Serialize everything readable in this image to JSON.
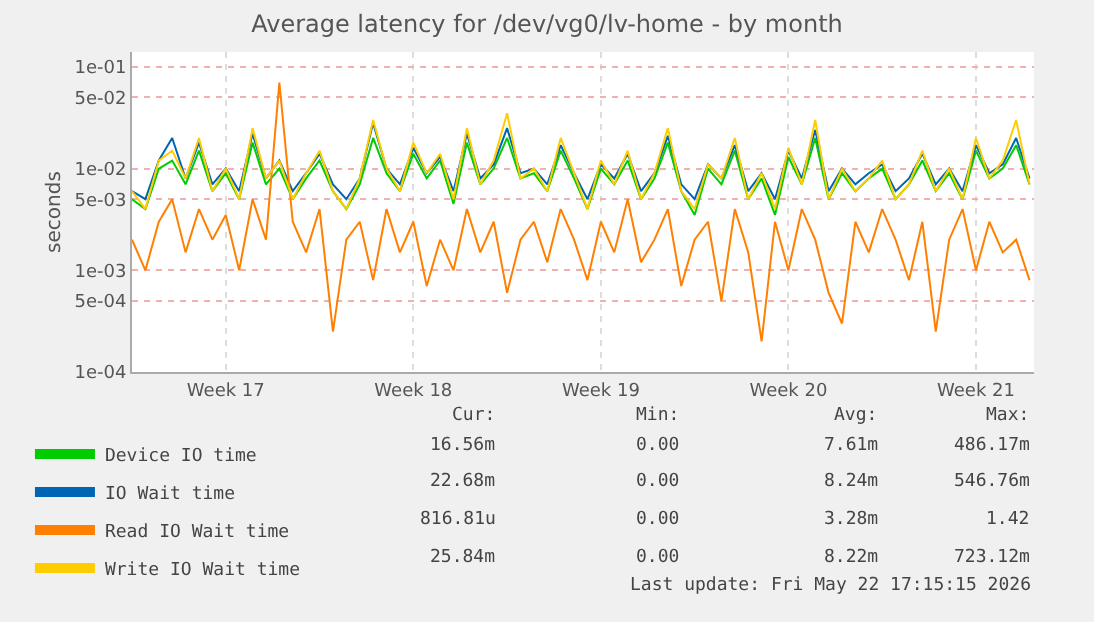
{
  "chart_data": {
    "type": "line",
    "title": "Average latency for /dev/vg0/lv-home - by month",
    "ylabel": "seconds",
    "x": [
      "2026-04-20T00:00",
      "2026-04-20T12:00",
      "2026-04-21T00:00",
      "2026-04-21T12:00",
      "2026-04-22T00:00",
      "2026-04-22T12:00",
      "2026-04-23T00:00",
      "2026-04-23T12:00",
      "2026-04-24T00:00",
      "2026-04-24T12:00",
      "2026-04-25T00:00",
      "2026-04-25T12:00",
      "2026-04-26T00:00",
      "2026-04-26T12:00",
      "2026-04-27T00:00",
      "2026-04-27T12:00",
      "2026-04-28T00:00",
      "2026-04-28T12:00",
      "2026-04-29T00:00",
      "2026-04-29T12:00",
      "2026-04-30T00:00",
      "2026-04-30T12:00",
      "2026-05-01T00:00",
      "2026-05-01T12:00",
      "2026-05-02T00:00",
      "2026-05-02T12:00",
      "2026-05-03T00:00",
      "2026-05-03T12:00",
      "2026-05-04T00:00",
      "2026-05-04T12:00",
      "2026-05-05T00:00",
      "2026-05-05T12:00",
      "2026-05-06T00:00",
      "2026-05-06T12:00",
      "2026-05-07T00:00",
      "2026-05-07T12:00",
      "2026-05-08T00:00",
      "2026-05-08T12:00",
      "2026-05-09T00:00",
      "2026-05-09T12:00",
      "2026-05-10T00:00",
      "2026-05-10T12:00",
      "2026-05-11T00:00",
      "2026-05-11T12:00",
      "2026-05-12T00:00",
      "2026-05-12T12:00",
      "2026-05-13T00:00",
      "2026-05-13T12:00",
      "2026-05-14T00:00",
      "2026-05-14T12:00",
      "2026-05-15T00:00",
      "2026-05-15T12:00",
      "2026-05-16T00:00",
      "2026-05-16T12:00",
      "2026-05-17T00:00",
      "2026-05-17T12:00",
      "2026-05-18T00:00",
      "2026-05-18T12:00",
      "2026-05-19T00:00",
      "2026-05-19T12:00",
      "2026-05-20T00:00",
      "2026-05-20T12:00",
      "2026-05-21T00:00",
      "2026-05-21T12:00",
      "2026-05-22T00:00",
      "2026-05-22T12:00",
      "2026-05-23T00:00",
      "2026-05-23T12:00"
    ],
    "series": [
      {
        "name": "Device IO time",
        "color": "#00cc00",
        "values": [
          0.005,
          0.004,
          0.01,
          0.012,
          0.007,
          0.015,
          0.006,
          0.009,
          0.005,
          0.018,
          0.007,
          0.01,
          0.005,
          0.008,
          0.012,
          0.006,
          0.004,
          0.007,
          0.02,
          0.009,
          0.006,
          0.014,
          0.008,
          0.012,
          0.0045,
          0.018,
          0.007,
          0.01,
          0.02,
          0.008,
          0.009,
          0.006,
          0.015,
          0.008,
          0.004,
          0.01,
          0.007,
          0.012,
          0.005,
          0.008,
          0.018,
          0.006,
          0.0035,
          0.01,
          0.007,
          0.015,
          0.005,
          0.008,
          0.0035,
          0.013,
          0.007,
          0.02,
          0.005,
          0.009,
          0.006,
          0.008,
          0.01,
          0.005,
          0.007,
          0.012,
          0.006,
          0.009,
          0.005,
          0.015,
          0.008,
          0.01,
          0.017,
          0.007
        ]
      },
      {
        "name": "IO Wait time",
        "color": "#0066b3",
        "values": [
          0.006,
          0.005,
          0.012,
          0.02,
          0.008,
          0.018,
          0.007,
          0.01,
          0.006,
          0.022,
          0.008,
          0.012,
          0.006,
          0.009,
          0.014,
          0.007,
          0.005,
          0.008,
          0.028,
          0.01,
          0.007,
          0.016,
          0.009,
          0.013,
          0.006,
          0.022,
          0.008,
          0.011,
          0.025,
          0.009,
          0.01,
          0.007,
          0.017,
          0.009,
          0.005,
          0.011,
          0.008,
          0.014,
          0.006,
          0.009,
          0.021,
          0.007,
          0.005,
          0.011,
          0.008,
          0.017,
          0.006,
          0.009,
          0.005,
          0.015,
          0.008,
          0.024,
          0.006,
          0.01,
          0.007,
          0.009,
          0.011,
          0.006,
          0.008,
          0.014,
          0.007,
          0.01,
          0.006,
          0.017,
          0.009,
          0.011,
          0.02,
          0.008
        ]
      },
      {
        "name": "Read IO Wait time",
        "color": "#ff8000",
        "values": [
          0.002,
          0.001,
          0.003,
          0.005,
          0.0015,
          0.004,
          0.002,
          0.0035,
          0.001,
          0.005,
          0.002,
          0.07,
          0.003,
          0.0015,
          0.004,
          0.00025,
          0.002,
          0.003,
          0.0008,
          0.004,
          0.0015,
          0.003,
          0.0007,
          0.002,
          0.001,
          0.004,
          0.0015,
          0.003,
          0.0006,
          0.002,
          0.003,
          0.0012,
          0.004,
          0.002,
          0.0008,
          0.003,
          0.0015,
          0.005,
          0.0012,
          0.002,
          0.004,
          0.0007,
          0.002,
          0.003,
          0.0005,
          0.004,
          0.0015,
          0.0002,
          0.003,
          0.001,
          0.004,
          0.002,
          0.0006,
          0.0003,
          0.003,
          0.0015,
          0.004,
          0.002,
          0.0008,
          0.003,
          0.00025,
          0.002,
          0.004,
          0.001,
          0.003,
          0.0015,
          0.002,
          0.0008
        ]
      },
      {
        "name": "Write IO Wait time",
        "color": "#ffcc00",
        "values": [
          0.006,
          0.004,
          0.012,
          0.015,
          0.008,
          0.02,
          0.006,
          0.01,
          0.005,
          0.025,
          0.008,
          0.012,
          0.005,
          0.009,
          0.015,
          0.006,
          0.004,
          0.008,
          0.03,
          0.01,
          0.006,
          0.018,
          0.009,
          0.014,
          0.005,
          0.025,
          0.007,
          0.012,
          0.035,
          0.008,
          0.01,
          0.006,
          0.02,
          0.009,
          0.004,
          0.012,
          0.007,
          0.015,
          0.005,
          0.009,
          0.025,
          0.006,
          0.004,
          0.011,
          0.008,
          0.02,
          0.005,
          0.009,
          0.004,
          0.016,
          0.007,
          0.03,
          0.005,
          0.01,
          0.006,
          0.008,
          0.012,
          0.005,
          0.007,
          0.015,
          0.006,
          0.01,
          0.005,
          0.02,
          0.008,
          0.012,
          0.03,
          0.007
        ]
      }
    ],
    "xlim": [
      "2026-04-20T00:00",
      "2026-05-23T16:00"
    ],
    "xticks": [
      {
        "value": "2026-04-23T12:00",
        "label": "Week 17"
      },
      {
        "value": "2026-04-30T12:00",
        "label": "Week 18"
      },
      {
        "value": "2026-05-07T12:00",
        "label": "Week 19"
      },
      {
        "value": "2026-05-14T12:00",
        "label": "Week 20"
      },
      {
        "value": "2026-05-21T12:00",
        "label": "Week 21"
      }
    ],
    "log": "y",
    "ylim": [
      0.0001,
      0.14
    ],
    "yticks": [
      {
        "value": 0.0001,
        "label": "1e-04"
      },
      {
        "value": 0.0005,
        "label": "5e-04"
      },
      {
        "value": 0.001,
        "label": "1e-03"
      },
      {
        "value": 0.005,
        "label": "5e-03"
      },
      {
        "value": 0.01,
        "label": "1e-02"
      },
      {
        "value": 0.05,
        "label": "5e-02"
      },
      {
        "value": 0.1,
        "label": "1e-01"
      }
    ],
    "grid": true,
    "legend": "bottom",
    "marker": "none",
    "line_style": "solid",
    "annotations": [
      "Cur:",
      "Min:",
      "Avg:",
      "Max:",
      "16.56m",
      "0.00",
      "7.61m",
      "486.17m",
      "22.68m",
      "0.00",
      "8.24m",
      "546.76m",
      "816.81u",
      "0.00",
      "3.28m",
      "1.42",
      "25.84m",
      "0.00",
      "8.22m",
      "723.12m",
      "Last update: Fri May 22 17:15:15 2026"
    ]
  }
}
